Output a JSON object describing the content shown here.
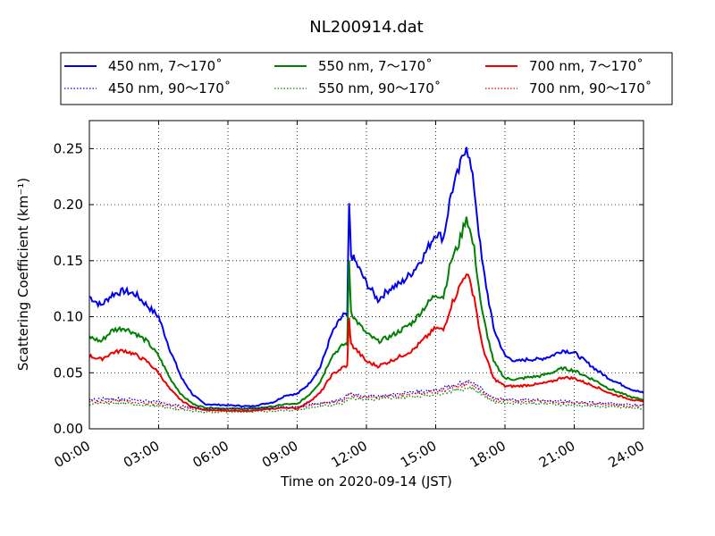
{
  "chart_data": {
    "type": "line",
    "title": "NL200914.dat",
    "xlabel": "Time on 2020-09-14 (JST)",
    "ylabel": "Scattering Coefficient (km⁻¹)",
    "xlim": [
      "00:00",
      "24:00"
    ],
    "ylim": [
      0,
      0.275
    ],
    "x_ticks": [
      "00:00",
      "03:00",
      "06:00",
      "09:00",
      "12:00",
      "15:00",
      "18:00",
      "21:00",
      "24:00"
    ],
    "y_ticks": [
      "0.00",
      "0.05",
      "0.10",
      "0.15",
      "0.20",
      "0.25"
    ],
    "grid": true,
    "legend_position": "top-center",
    "legend_columns": 3,
    "series": [
      {
        "name": "450 nm, 7～170˚",
        "color": "#0000ee",
        "style": "solid",
        "x": [
          "00:00",
          "00:30",
          "01:00",
          "01:30",
          "02:00",
          "02:30",
          "03:00",
          "03:30",
          "04:00",
          "04:30",
          "05:00",
          "06:00",
          "07:00",
          "08:00",
          "08:30",
          "09:00",
          "09:30",
          "10:00",
          "10:30",
          "11:00",
          "11:10",
          "11:15",
          "11:20",
          "11:30",
          "12:00",
          "12:30",
          "13:00",
          "13:30",
          "14:00",
          "14:30",
          "15:00",
          "15:20",
          "15:40",
          "16:00",
          "16:20",
          "16:40",
          "17:00",
          "17:30",
          "18:00",
          "18:30",
          "19:00",
          "19:30",
          "20:00",
          "20:30",
          "21:00",
          "21:30",
          "22:00",
          "22:30",
          "23:00",
          "23:30",
          "24:00"
        ],
        "values": [
          0.118,
          0.11,
          0.12,
          0.123,
          0.12,
          0.11,
          0.1,
          0.07,
          0.045,
          0.03,
          0.022,
          0.021,
          0.02,
          0.024,
          0.03,
          0.031,
          0.04,
          0.055,
          0.085,
          0.102,
          0.1,
          0.2,
          0.155,
          0.15,
          0.13,
          0.115,
          0.125,
          0.13,
          0.14,
          0.155,
          0.175,
          0.17,
          0.21,
          0.23,
          0.255,
          0.215,
          0.15,
          0.09,
          0.065,
          0.06,
          0.062,
          0.062,
          0.065,
          0.07,
          0.068,
          0.06,
          0.052,
          0.045,
          0.04,
          0.035,
          0.032
        ]
      },
      {
        "name": "550 nm, 7～170˚",
        "color": "#008000",
        "style": "solid",
        "x": [
          "00:00",
          "00:30",
          "01:00",
          "01:30",
          "02:00",
          "02:30",
          "03:00",
          "03:30",
          "04:00",
          "04:30",
          "05:00",
          "06:00",
          "07:00",
          "08:00",
          "08:30",
          "09:00",
          "09:30",
          "10:00",
          "10:30",
          "11:00",
          "11:10",
          "11:15",
          "11:20",
          "11:30",
          "12:00",
          "12:30",
          "13:00",
          "13:30",
          "14:00",
          "14:30",
          "15:00",
          "15:20",
          "15:40",
          "16:00",
          "16:20",
          "16:40",
          "17:00",
          "17:30",
          "18:00",
          "18:30",
          "19:00",
          "19:30",
          "20:00",
          "20:30",
          "21:00",
          "21:30",
          "22:00",
          "22:30",
          "23:00",
          "23:30",
          "24:00"
        ],
        "values": [
          0.082,
          0.078,
          0.088,
          0.09,
          0.085,
          0.078,
          0.065,
          0.045,
          0.03,
          0.022,
          0.019,
          0.018,
          0.018,
          0.02,
          0.022,
          0.022,
          0.03,
          0.042,
          0.065,
          0.075,
          0.076,
          0.15,
          0.105,
          0.098,
          0.085,
          0.078,
          0.082,
          0.088,
          0.095,
          0.108,
          0.12,
          0.118,
          0.15,
          0.165,
          0.19,
          0.16,
          0.105,
          0.06,
          0.045,
          0.044,
          0.046,
          0.047,
          0.05,
          0.054,
          0.052,
          0.047,
          0.042,
          0.036,
          0.032,
          0.028,
          0.026
        ]
      },
      {
        "name": "700 nm, 7～170˚",
        "color": "#ee0000",
        "style": "solid",
        "x": [
          "00:00",
          "00:30",
          "01:00",
          "01:30",
          "02:00",
          "02:30",
          "03:00",
          "03:30",
          "04:00",
          "04:30",
          "05:00",
          "06:00",
          "07:00",
          "08:00",
          "08:30",
          "09:00",
          "09:30",
          "10:00",
          "10:30",
          "11:00",
          "11:10",
          "11:15",
          "11:20",
          "11:30",
          "12:00",
          "12:30",
          "13:00",
          "13:30",
          "14:00",
          "14:30",
          "15:00",
          "15:20",
          "15:40",
          "16:00",
          "16:20",
          "16:40",
          "17:00",
          "17:30",
          "18:00",
          "18:30",
          "19:00",
          "19:30",
          "20:00",
          "20:30",
          "21:00",
          "21:30",
          "22:00",
          "22:30",
          "23:00",
          "23:30",
          "24:00"
        ],
        "values": [
          0.065,
          0.062,
          0.068,
          0.07,
          0.066,
          0.06,
          0.05,
          0.035,
          0.025,
          0.019,
          0.017,
          0.016,
          0.016,
          0.018,
          0.019,
          0.018,
          0.024,
          0.032,
          0.048,
          0.055,
          0.056,
          0.098,
          0.075,
          0.072,
          0.06,
          0.056,
          0.06,
          0.065,
          0.07,
          0.08,
          0.09,
          0.088,
          0.11,
          0.125,
          0.14,
          0.118,
          0.075,
          0.045,
          0.038,
          0.038,
          0.039,
          0.04,
          0.042,
          0.046,
          0.045,
          0.041,
          0.037,
          0.032,
          0.029,
          0.026,
          0.024
        ]
      },
      {
        "name": "450 nm, 90～170˚",
        "color": "#0000ee",
        "style": "dotted",
        "x": [
          "00:00",
          "01:00",
          "02:00",
          "03:00",
          "04:00",
          "05:00",
          "06:00",
          "07:00",
          "08:00",
          "09:00",
          "10:00",
          "11:00",
          "11:15",
          "12:00",
          "13:00",
          "14:00",
          "15:00",
          "16:00",
          "16:30",
          "17:00",
          "17:30",
          "18:00",
          "19:00",
          "20:00",
          "21:00",
          "22:00",
          "23:00",
          "24:00"
        ],
        "values": [
          0.026,
          0.027,
          0.026,
          0.024,
          0.02,
          0.018,
          0.018,
          0.018,
          0.019,
          0.02,
          0.023,
          0.026,
          0.032,
          0.029,
          0.03,
          0.033,
          0.035,
          0.04,
          0.042,
          0.035,
          0.027,
          0.026,
          0.026,
          0.025,
          0.024,
          0.023,
          0.022,
          0.021
        ]
      },
      {
        "name": "550 nm, 90～170˚",
        "color": "#008000",
        "style": "dotted",
        "x": [
          "00:00",
          "01:00",
          "02:00",
          "03:00",
          "04:00",
          "05:00",
          "06:00",
          "07:00",
          "08:00",
          "09:00",
          "10:00",
          "11:00",
          "11:15",
          "12:00",
          "13:00",
          "14:00",
          "15:00",
          "16:00",
          "16:30",
          "17:00",
          "17:30",
          "18:00",
          "19:00",
          "20:00",
          "21:00",
          "22:00",
          "23:00",
          "24:00"
        ],
        "values": [
          0.022,
          0.023,
          0.022,
          0.02,
          0.017,
          0.015,
          0.015,
          0.015,
          0.016,
          0.017,
          0.02,
          0.023,
          0.028,
          0.026,
          0.027,
          0.029,
          0.031,
          0.035,
          0.037,
          0.031,
          0.024,
          0.023,
          0.023,
          0.022,
          0.021,
          0.02,
          0.019,
          0.018
        ]
      },
      {
        "name": "700 nm, 90～170˚",
        "color": "#ee0000",
        "style": "dotted",
        "x": [
          "00:00",
          "01:00",
          "02:00",
          "03:00",
          "04:00",
          "05:00",
          "06:00",
          "07:00",
          "08:00",
          "09:00",
          "10:00",
          "11:00",
          "11:15",
          "12:00",
          "13:00",
          "14:00",
          "15:00",
          "16:00",
          "16:30",
          "17:00",
          "17:30",
          "18:00",
          "19:00",
          "20:00",
          "21:00",
          "22:00",
          "23:00",
          "24:00"
        ],
        "values": [
          0.024,
          0.025,
          0.024,
          0.022,
          0.019,
          0.017,
          0.017,
          0.017,
          0.018,
          0.019,
          0.022,
          0.025,
          0.03,
          0.028,
          0.029,
          0.031,
          0.033,
          0.038,
          0.04,
          0.033,
          0.026,
          0.025,
          0.025,
          0.024,
          0.023,
          0.022,
          0.021,
          0.02
        ]
      }
    ]
  }
}
